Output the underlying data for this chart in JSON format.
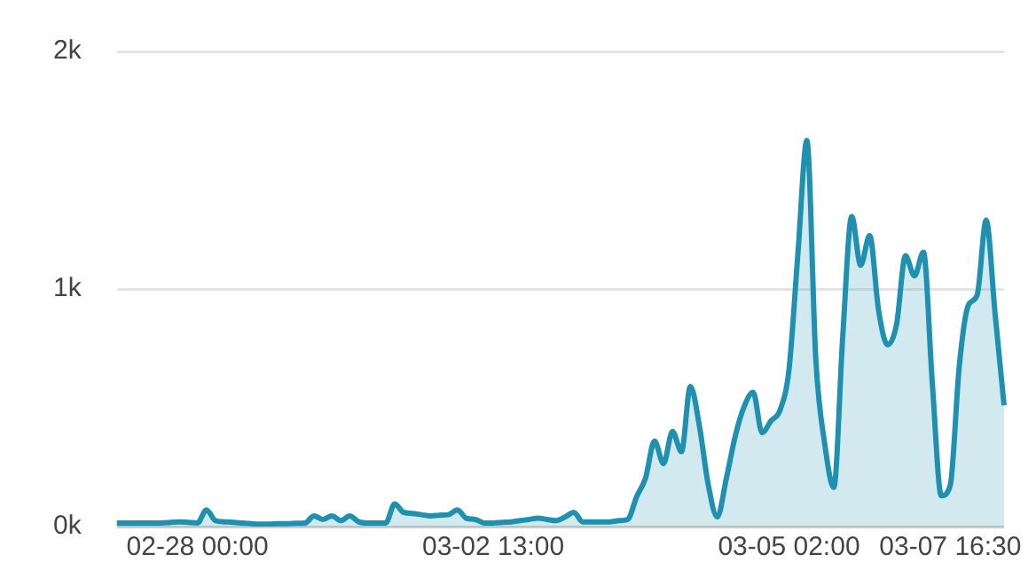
{
  "chart_data": {
    "type": "area",
    "categories": [
      null,
      null,
      null,
      null,
      null,
      null,
      null,
      null,
      null,
      "02-28 00:00",
      null,
      null,
      null,
      null,
      null,
      null,
      null,
      null,
      null,
      null,
      null,
      null,
      null,
      null,
      null,
      null,
      null,
      null,
      null,
      null,
      null,
      null,
      null,
      null,
      null,
      null,
      null,
      null,
      null,
      null,
      null,
      null,
      "03-02 13:00",
      null,
      null,
      null,
      null,
      null,
      null,
      null,
      null,
      null,
      null,
      null,
      null,
      null,
      null,
      null,
      null,
      null,
      null,
      null,
      null,
      null,
      null,
      null,
      null,
      null,
      null,
      null,
      null,
      null,
      null,
      null,
      null,
      "03-05 02:00",
      null,
      null,
      null,
      null,
      null,
      null,
      null,
      null,
      null,
      null,
      null,
      null,
      null,
      null,
      null,
      null,
      null,
      "03-07 16:30",
      null,
      null,
      null,
      null,
      null,
      null
    ],
    "ylim": [
      0,
      2000
    ],
    "yticks": [
      {
        "value": 0,
        "label": "0k"
      },
      {
        "value": 1000,
        "label": "1k"
      },
      {
        "value": 2000,
        "label": "2k"
      }
    ],
    "grid": "y",
    "legend": false,
    "marker": "none",
    "series": [
      {
        "color": "#2090b0",
        "values": [
          15,
          15,
          15,
          15,
          15,
          15,
          18,
          20,
          18,
          15,
          70,
          25,
          20,
          18,
          15,
          12,
          10,
          10,
          12,
          12,
          14,
          15,
          45,
          30,
          45,
          25,
          45,
          20,
          15,
          15,
          15,
          95,
          60,
          55,
          50,
          45,
          48,
          50,
          70,
          35,
          30,
          15,
          15,
          18,
          20,
          25,
          30,
          35,
          30,
          25,
          40,
          60,
          20,
          20,
          20,
          20,
          25,
          30,
          125,
          205,
          360,
          265,
          400,
          315,
          590,
          425,
          175,
          40,
          200,
          380,
          505,
          565,
          395,
          445,
          490,
          660,
          1150,
          1625,
          700,
          345,
          165,
          800,
          1305,
          1100,
          1225,
          910,
          765,
          850,
          1140,
          1055,
          1155,
          600,
          130,
          175,
          675,
          930,
          975,
          1290,
          895,
          510
        ]
      }
    ]
  }
}
